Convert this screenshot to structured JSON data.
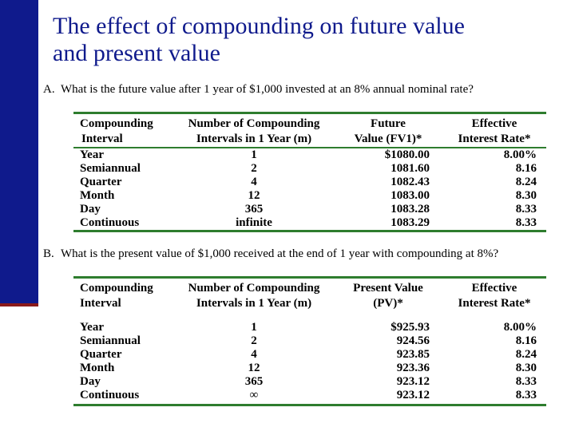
{
  "title_line1": "The effect of compounding on future value",
  "title_line2": "and present value",
  "section_a": {
    "letter": "A.",
    "question": "What is the future value after 1 year of $1,000 invested at an 8% annual nominal rate?",
    "headers": {
      "col1": [
        "Compounding",
        "Interval"
      ],
      "col2": [
        "Number of Compounding",
        "Intervals in 1 Year (m)"
      ],
      "col3": [
        "Future",
        "Value (FV1)*"
      ],
      "col4": [
        "Effective",
        "Interest Rate*"
      ]
    },
    "rows": [
      {
        "interval": "Year",
        "m": "1",
        "value": "$1080.00",
        "rate": "8.00%"
      },
      {
        "interval": "Semiannual",
        "m": "2",
        "value": "1081.60",
        "rate": "8.16"
      },
      {
        "interval": "Quarter",
        "m": "4",
        "value": "1082.43",
        "rate": "8.24"
      },
      {
        "interval": "Month",
        "m": "12",
        "value": "1083.00",
        "rate": "8.30"
      },
      {
        "interval": "Day",
        "m": "365",
        "value": "1083.28",
        "rate": "8.33"
      },
      {
        "interval": "Continuous",
        "m": "infinite",
        "value": "1083.29",
        "rate": "8.33"
      }
    ]
  },
  "section_b": {
    "letter": "B.",
    "question": "What is the present value of $1,000 received at the end of 1 year with compounding at 8%?",
    "headers": {
      "col1": [
        "Compounding",
        "Interval"
      ],
      "col2": [
        "Number of Compounding",
        "Intervals in 1 Year (m)"
      ],
      "col3": [
        "Present Value",
        "(PV)*"
      ],
      "col4": [
        "Effective",
        "Interest Rate*"
      ]
    },
    "rows": [
      {
        "interval": "Year",
        "m": "1",
        "value": "$925.93",
        "rate": "8.00%"
      },
      {
        "interval": "Semiannual",
        "m": "2",
        "value": "924.56",
        "rate": "8.16"
      },
      {
        "interval": "Quarter",
        "m": "4",
        "value": "923.85",
        "rate": "8.24"
      },
      {
        "interval": "Month",
        "m": "12",
        "value": "923.36",
        "rate": "8.30"
      },
      {
        "interval": "Day",
        "m": "365",
        "value": "923.12",
        "rate": "8.33"
      },
      {
        "interval": "Continuous",
        "m": "∞",
        "value": "923.12",
        "rate": "8.33"
      }
    ]
  },
  "colors": {
    "title": "#0f1a8c",
    "bar": "#0f1a8c",
    "rule": "#2e7d2e",
    "accent": "#8b1a1a"
  }
}
